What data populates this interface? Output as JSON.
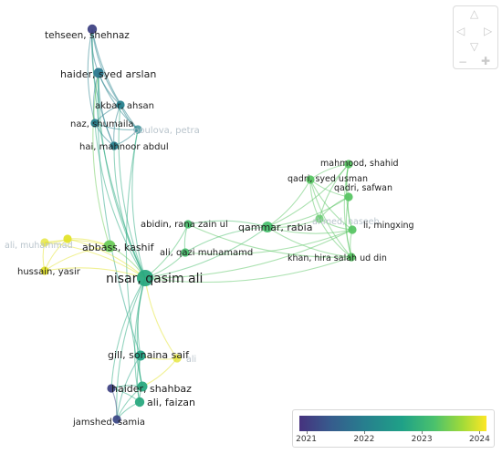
{
  "nodes": [
    {
      "id": "tehseen",
      "label": "tehseen, shehnaz",
      "year": 2021.1,
      "faded": false
    },
    {
      "id": "haider_sa",
      "label": "haider, syed arslan",
      "year": 2021.9,
      "faded": false
    },
    {
      "id": "akbar",
      "label": "akbar, ahsan",
      "year": 2022.05,
      "faded": false
    },
    {
      "id": "naz",
      "label": "naz, shumaila",
      "year": 2022.05,
      "faded": false
    },
    {
      "id": "petra",
      "label": "poulova, petra",
      "year": 2022.1,
      "faded": true
    },
    {
      "id": "hai",
      "label": "hai, mahnoor abdul",
      "year": 2022.05,
      "faded": false
    },
    {
      "id": "mahmood",
      "label": "mahmood, shahid",
      "year": 2023.3,
      "faded": false
    },
    {
      "id": "qadri_su",
      "label": "qadri, syed usman",
      "year": 2023.3,
      "faded": false
    },
    {
      "id": "qadri_sa",
      "label": "qadri, safwan",
      "year": 2023.3,
      "faded": false
    },
    {
      "id": "ahmed",
      "label": "ahmed, naseeb",
      "year": 2023.3,
      "faded": true
    },
    {
      "id": "li",
      "label": "li, mingxing",
      "year": 2023.3,
      "faded": false
    },
    {
      "id": "khan",
      "label": "khan, hira salah ud din",
      "year": 2023.3,
      "faded": false
    },
    {
      "id": "qammar",
      "label": "qammar, rabia",
      "year": 2023.2,
      "faded": false
    },
    {
      "id": "abidin",
      "label": "abidin, rana zain ul",
      "year": 2023.2,
      "faded": false
    },
    {
      "id": "ali_qm",
      "label": "ali, qazi muhamamd",
      "year": 2023.2,
      "faded": false
    },
    {
      "id": "ali_muh",
      "label": "ali, muhammad",
      "year": 2024,
      "faded": true
    },
    {
      "id": "abbass",
      "label": "abbass, kashif",
      "year": 2023.4,
      "faded": false
    },
    {
      "id": "y3",
      "label": "",
      "year": 2024,
      "faded": false
    },
    {
      "id": "hussain",
      "label": "hussain, yasir",
      "year": 2024,
      "faded": false
    },
    {
      "id": "nisar",
      "label": "nisar, qasim ali",
      "year": 2022.8,
      "faded": false
    },
    {
      "id": "gill",
      "label": "gill, sonaina saif",
      "year": 2022.7,
      "faded": false
    },
    {
      "id": "ali_y",
      "label": "ali",
      "year": 2024,
      "faded": true
    },
    {
      "id": "haider_sh",
      "label": "haider, shahbaz",
      "year": 2022.8,
      "faded": false
    },
    {
      "id": "purple_left",
      "label": "",
      "year": 2021.1,
      "faded": false
    },
    {
      "id": "ali_f",
      "label": "ali, faizan",
      "year": 2022.8,
      "faded": false
    },
    {
      "id": "jamshed",
      "label": "jamshed, samia",
      "year": 2021.2,
      "faded": false
    }
  ],
  "edges": [
    [
      "tehseen",
      "haider_sa"
    ],
    [
      "tehseen",
      "akbar"
    ],
    [
      "tehseen",
      "naz"
    ],
    [
      "tehseen",
      "hai"
    ],
    [
      "tehseen",
      "petra"
    ],
    [
      "tehseen",
      "nisar"
    ],
    [
      "haider_sa",
      "akbar"
    ],
    [
      "haider_sa",
      "naz"
    ],
    [
      "haider_sa",
      "hai"
    ],
    [
      "haider_sa",
      "petra"
    ],
    [
      "haider_sa",
      "nisar"
    ],
    [
      "haider_sa",
      "abbass"
    ],
    [
      "haider_sa",
      "gill"
    ],
    [
      "akbar",
      "naz"
    ],
    [
      "akbar",
      "hai"
    ],
    [
      "akbar",
      "petra"
    ],
    [
      "akbar",
      "nisar"
    ],
    [
      "naz",
      "hai"
    ],
    [
      "naz",
      "petra"
    ],
    [
      "naz",
      "nisar"
    ],
    [
      "hai",
      "petra"
    ],
    [
      "hai",
      "nisar"
    ],
    [
      "petra",
      "nisar"
    ],
    [
      "petra",
      "haider_sh"
    ],
    [
      "nisar",
      "qammar"
    ],
    [
      "nisar",
      "abidin"
    ],
    [
      "nisar",
      "ali_qm"
    ],
    [
      "nisar",
      "khan"
    ],
    [
      "nisar",
      "li"
    ],
    [
      "nisar",
      "abbass"
    ],
    [
      "nisar",
      "y3"
    ],
    [
      "nisar",
      "hussain"
    ],
    [
      "nisar",
      "ali_muh"
    ],
    [
      "nisar",
      "gill"
    ],
    [
      "nisar",
      "haider_sh"
    ],
    [
      "nisar",
      "ali_f"
    ],
    [
      "nisar",
      "jamshed"
    ],
    [
      "nisar",
      "ali_y"
    ],
    [
      "nisar",
      "purple_left"
    ],
    [
      "qammar",
      "abidin"
    ],
    [
      "qammar",
      "ali_qm"
    ],
    [
      "qammar",
      "mahmood"
    ],
    [
      "qammar",
      "qadri_su"
    ],
    [
      "qammar",
      "qadri_sa"
    ],
    [
      "qammar",
      "ahmed"
    ],
    [
      "qammar",
      "li"
    ],
    [
      "qammar",
      "khan"
    ],
    [
      "mahmood",
      "qadri_su"
    ],
    [
      "mahmood",
      "qadri_sa"
    ],
    [
      "mahmood",
      "ahmed"
    ],
    [
      "mahmood",
      "li"
    ],
    [
      "mahmood",
      "khan"
    ],
    [
      "qadri_su",
      "qadri_sa"
    ],
    [
      "qadri_su",
      "ahmed"
    ],
    [
      "qadri_su",
      "li"
    ],
    [
      "qadri_su",
      "khan"
    ],
    [
      "qadri_sa",
      "ahmed"
    ],
    [
      "qadri_sa",
      "li"
    ],
    [
      "qadri_sa",
      "khan"
    ],
    [
      "ahmed",
      "li"
    ],
    [
      "ahmed",
      "khan"
    ],
    [
      "li",
      "khan"
    ],
    [
      "abidin",
      "ali_qm"
    ],
    [
      "abidin",
      "khan"
    ],
    [
      "ali_qm",
      "li"
    ],
    [
      "abbass",
      "ali_muh"
    ],
    [
      "abbass",
      "y3"
    ],
    [
      "abbass",
      "hussain"
    ],
    [
      "ali_muh",
      "y3"
    ],
    [
      "ali_muh",
      "hussain"
    ],
    [
      "y3",
      "hussain"
    ],
    [
      "gill",
      "ali_y"
    ],
    [
      "gill",
      "haider_sh"
    ],
    [
      "gill",
      "ali_f"
    ],
    [
      "gill",
      "jamshed"
    ],
    [
      "haider_sh",
      "ali_f"
    ],
    [
      "haider_sh",
      "jamshed"
    ],
    [
      "haider_sh",
      "purple_left"
    ],
    [
      "haider_sh",
      "ali_y"
    ],
    [
      "ali_f",
      "jamshed"
    ],
    [
      "ali_f",
      "purple_left"
    ],
    [
      "jamshed",
      "purple_left"
    ]
  ],
  "legend": {
    "ticks": [
      "2021",
      "2022",
      "2023",
      "2024"
    ],
    "range": [
      2020.88,
      2024.12
    ]
  },
  "navigation": {
    "up": "△",
    "down": "▽",
    "left": "◁",
    "right": "▷",
    "zoom_out": "−",
    "zoom_in": "✚"
  }
}
